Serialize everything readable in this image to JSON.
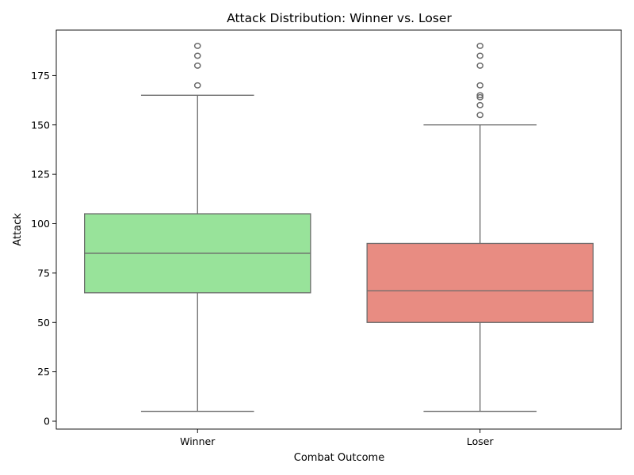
{
  "chart_data": {
    "type": "box",
    "title": "Attack Distribution: Winner vs. Loser",
    "xlabel": "Combat Outcome",
    "ylabel": "Attack",
    "ylim": [
      -4,
      198
    ],
    "yticks": [
      0,
      25,
      50,
      75,
      100,
      125,
      150,
      175
    ],
    "grid": false,
    "line_color": "#6b6b6b",
    "categories": [
      "Winner",
      "Loser"
    ],
    "boxes": [
      {
        "category": "Winner",
        "color": "#98e39a",
        "whisker_low": 5,
        "q1": 65,
        "median": 85,
        "q3": 105,
        "whisker_high": 165,
        "outliers": [
          170,
          180,
          185,
          190
        ]
      },
      {
        "category": "Loser",
        "color": "#e88c82",
        "whisker_low": 5,
        "q1": 50,
        "median": 66,
        "q3": 90,
        "whisker_high": 150,
        "outliers": [
          155,
          160,
          164,
          165,
          170,
          180,
          185,
          190
        ]
      }
    ]
  }
}
